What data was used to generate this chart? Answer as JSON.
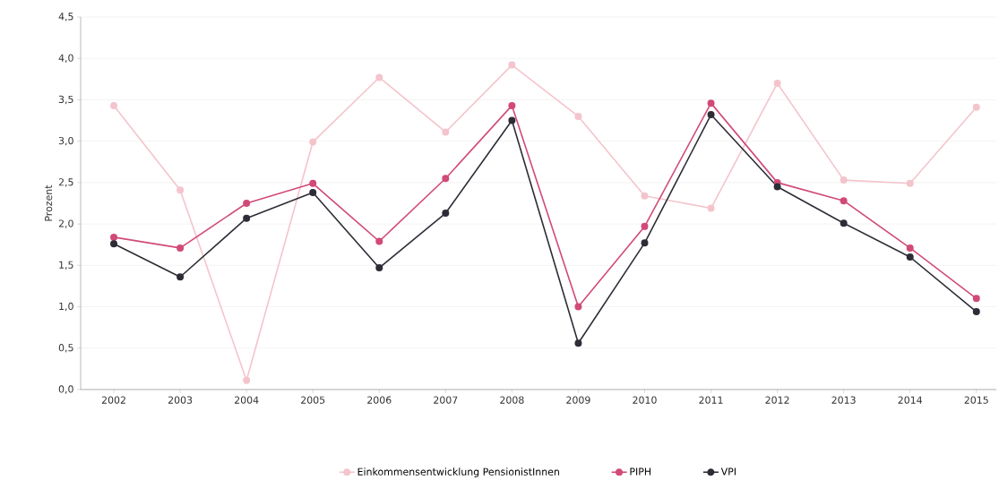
{
  "chart_data": {
    "type": "line",
    "ylabel": "Prozent",
    "categories": [
      "2002",
      "2003",
      "2004",
      "2005",
      "2006",
      "2007",
      "2008",
      "2009",
      "2010",
      "2011",
      "2012",
      "2013",
      "2014",
      "2015"
    ],
    "series": [
      {
        "name": "Einkommensentwicklung PensionistInnen",
        "color": "#f4c4cc",
        "values": [
          3.43,
          2.41,
          0.11,
          2.99,
          3.77,
          3.11,
          3.92,
          3.3,
          2.34,
          2.19,
          3.7,
          2.53,
          2.49,
          3.41
        ]
      },
      {
        "name": "PIPH",
        "color": "#d14a78",
        "values": [
          1.84,
          1.71,
          2.25,
          2.49,
          1.79,
          2.55,
          3.43,
          1.0,
          1.97,
          3.46,
          2.5,
          2.28,
          1.71,
          1.1
        ]
      },
      {
        "name": "VPI",
        "color": "#2d2d37",
        "values": [
          1.76,
          1.36,
          2.07,
          2.38,
          1.47,
          2.13,
          3.25,
          0.56,
          1.77,
          3.32,
          2.45,
          2.01,
          1.6,
          0.94
        ]
      }
    ],
    "ylim": [
      0,
      4.5
    ],
    "yticks": [
      {
        "value": 0,
        "label": "0,0"
      },
      {
        "value": 0.5,
        "label": "0,5"
      },
      {
        "value": 1,
        "label": "1,0"
      },
      {
        "value": 1.5,
        "label": "1,5"
      },
      {
        "value": 2,
        "label": "2,0"
      },
      {
        "value": 2.5,
        "label": "2,5"
      },
      {
        "value": 3,
        "label": "3,0"
      },
      {
        "value": 3.5,
        "label": "3,5"
      },
      {
        "value": 4,
        "label": "4,0"
      },
      {
        "value": 4.5,
        "label": "4,5"
      }
    ],
    "grid": "y",
    "legend": "bottom",
    "marker": "circle",
    "line_style": "solid"
  }
}
